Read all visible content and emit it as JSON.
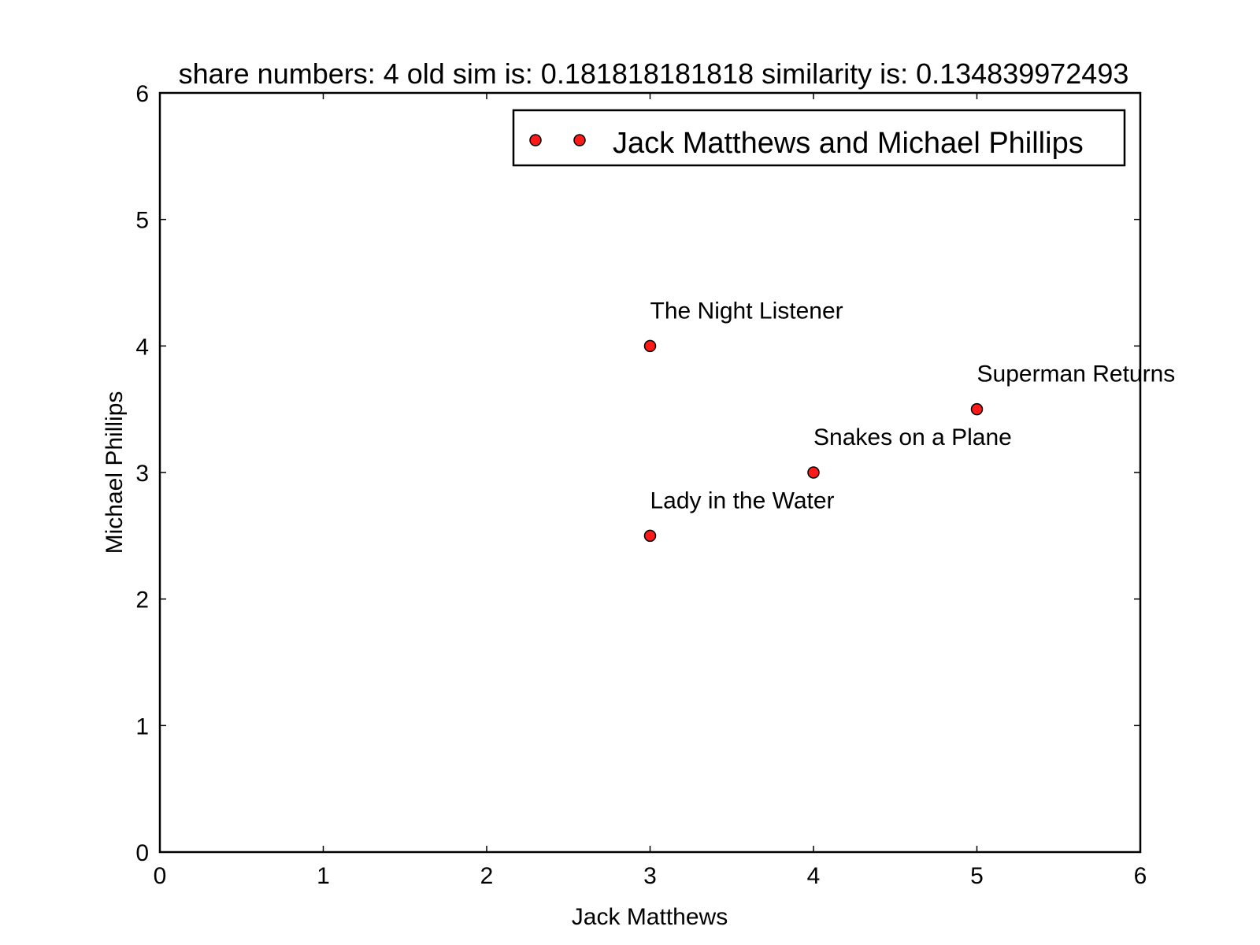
{
  "chart_data": {
    "type": "scatter",
    "title": "share numbers: 4 old sim is: 0.181818181818 similarity is: 0.134839972493",
    "xlabel": "Jack Matthews",
    "ylabel": "Michael Phillips",
    "xlim": [
      0,
      6
    ],
    "ylim": [
      0,
      6
    ],
    "xticks": [
      "0",
      "1",
      "2",
      "3",
      "4",
      "5",
      "6"
    ],
    "yticks": [
      "0",
      "1",
      "2",
      "3",
      "4",
      "5",
      "6"
    ],
    "grid": false,
    "legend_position": "top-right",
    "series": [
      {
        "name": "Jack Matthews and Michael Phillips",
        "color": "#ff1a1a",
        "points": [
          {
            "x": 3,
            "y": 4,
            "label": "The Night Listener"
          },
          {
            "x": 5,
            "y": 3.5,
            "label": "Superman Returns"
          },
          {
            "x": 4,
            "y": 3,
            "label": "Snakes on a Plane"
          },
          {
            "x": 3,
            "y": 2.5,
            "label": "Lady in the Water"
          }
        ]
      }
    ]
  }
}
